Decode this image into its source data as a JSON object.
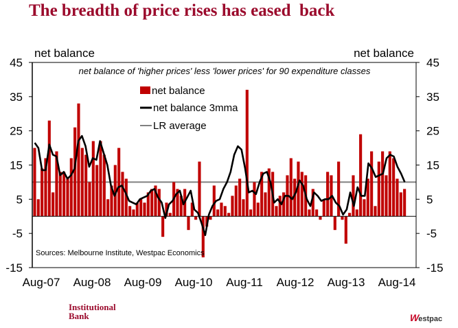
{
  "page_title": "The breadth of price rises has eased  back",
  "footer": {
    "left_logo_line1": "Institutional",
    "left_logo_line2": "Bank",
    "right_logo_mark": "W",
    "right_logo_text": "estpac"
  },
  "chart_data": {
    "type": "bar",
    "title": "The breadth of price rises has eased  back",
    "subtitle": "net balance of 'higher prices' less 'lower prices' for 90 expenditure classes",
    "ylabel_left": "net balance",
    "ylabel_right": "net balance",
    "source": "Sources: Melbourne Institute, Westpac Economics",
    "ylim": [
      -15,
      45
    ],
    "yticks": [
      45,
      35,
      25,
      15,
      5,
      -5,
      -15
    ],
    "xtick_labels": [
      "Aug-07",
      "Aug-08",
      "Aug-09",
      "Aug-10",
      "Aug-11",
      "Aug-12",
      "Aug-13",
      "Aug-14"
    ],
    "legend": [
      {
        "name": "net balance",
        "kind": "bar",
        "color": "#c00000"
      },
      {
        "name": "net balance 3mma",
        "kind": "line",
        "color": "#000000"
      },
      {
        "name": "LR average",
        "kind": "line",
        "color": "#808080"
      }
    ],
    "legend_placement": "top-center",
    "grid": false,
    "lr_average": 10,
    "series": [
      {
        "name": "net balance",
        "values": [
          20,
          5,
          14,
          17,
          28,
          7,
          19,
          13,
          13,
          11,
          17,
          26,
          33,
          20,
          18,
          10,
          22,
          15,
          22,
          18,
          5,
          9,
          15,
          20,
          13,
          11,
          3,
          2,
          4,
          5,
          4,
          7,
          8,
          9,
          8,
          -6,
          4,
          1,
          10,
          8,
          6,
          8,
          -4,
          4,
          -1,
          16,
          -12,
          -3,
          -1,
          9,
          2,
          4,
          3,
          1,
          6,
          9,
          11,
          5,
          37,
          2,
          10,
          4,
          13,
          7,
          14,
          13,
          3,
          6,
          7,
          12,
          17,
          11,
          16,
          13,
          12,
          2,
          8,
          2,
          -1,
          5,
          13,
          12,
          -4,
          16,
          -1,
          -8,
          1,
          12,
          2,
          24,
          5,
          11,
          19,
          3,
          16,
          19,
          12,
          19,
          17,
          11,
          7,
          8
        ]
      },
      {
        "name": "net balance 3mma",
        "values": [
          21.5,
          20,
          13.5,
          13.5,
          21,
          18,
          17.5,
          12,
          13,
          11,
          12,
          14,
          22,
          23.5,
          20.5,
          14.5,
          17,
          16.5,
          22,
          18.5,
          15,
          9,
          6,
          8.5,
          9,
          7,
          4.5,
          4,
          3.5,
          5,
          5.5,
          6,
          7.5,
          8,
          5.5,
          4,
          -0.5,
          3.5,
          4.5,
          6.5,
          7.5,
          3.5,
          5.5,
          7.5,
          2,
          1,
          -2,
          -5.5,
          0.5,
          3,
          4.5,
          5,
          8,
          10,
          13,
          18,
          20.5,
          19.5,
          14,
          7,
          7.5,
          6.5,
          10,
          12.5,
          13,
          10,
          4,
          5,
          3.5,
          6,
          6,
          5,
          7,
          10.5,
          9,
          5,
          3,
          7,
          6,
          4.5,
          5,
          5,
          6,
          4,
          3,
          0.5,
          2,
          7,
          3,
          8.5,
          6,
          6,
          15.5,
          14,
          11.5,
          12,
          12.5,
          17,
          18,
          17.5,
          14.5,
          12.5,
          10
        ]
      }
    ]
  }
}
